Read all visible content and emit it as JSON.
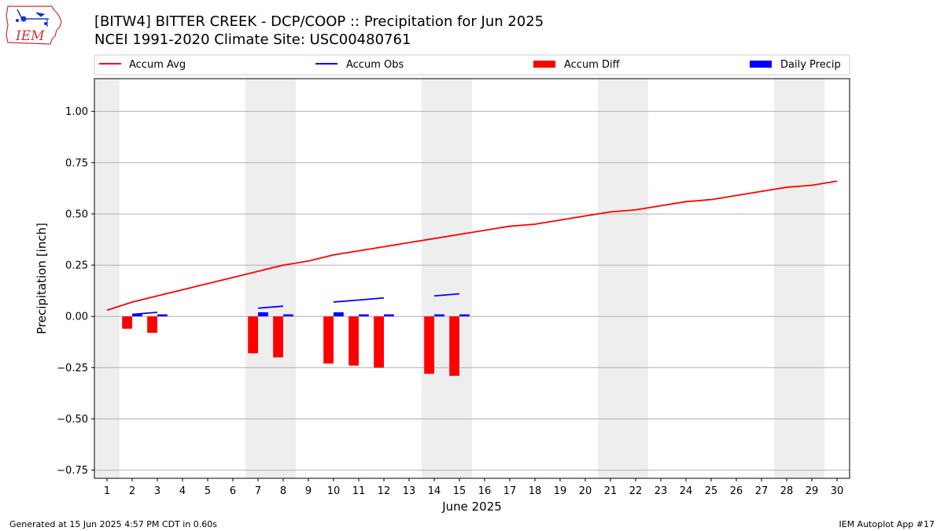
{
  "title": "[BITW4] BITTER CREEK - DCP/COOP :: Precipitation for Jun 2025",
  "subtitle": "NCEI 1991-2020 Climate Site: USC00480761",
  "logo_text": "IEM",
  "footer": {
    "generated": "Generated at 15 Jun 2025 4:57 PM CDT in 0.60s",
    "app": "IEM Autoplot App #17"
  },
  "colors": {
    "accum_avg": "#ff0000",
    "accum_obs": "#0000ff",
    "accum_diff": "#ff0000",
    "daily_precip": "#0000ff",
    "weekend_band": "#eeeeee",
    "grid": "#b0b0b0"
  },
  "chart_data": {
    "type": "bar",
    "xlabel": "June 2025",
    "ylabel": "Precipitation [inch]",
    "ylim": [
      -0.79,
      1.16
    ],
    "xlim": [
      0.5,
      30.5
    ],
    "grid": "horizontal",
    "legend_position": "top",
    "x": [
      1,
      2,
      3,
      4,
      5,
      6,
      7,
      8,
      9,
      10,
      11,
      12,
      13,
      14,
      15,
      16,
      17,
      18,
      19,
      20,
      21,
      22,
      23,
      24,
      25,
      26,
      27,
      28,
      29,
      30
    ],
    "y_ticks": [
      -0.75,
      -0.5,
      -0.25,
      0.0,
      0.25,
      0.5,
      0.75,
      1.0
    ],
    "y_tick_labels": [
      "−0.75",
      "−0.50",
      "−0.25",
      "0.00",
      "0.25",
      "0.50",
      "0.75",
      "1.00"
    ],
    "weekend_days": [
      1,
      7,
      8,
      14,
      15,
      21,
      22,
      28,
      29
    ],
    "series": [
      {
        "name": "Accum Avg",
        "kind": "line",
        "x": [
          1,
          2,
          3,
          4,
          5,
          6,
          7,
          8,
          9,
          10,
          11,
          12,
          13,
          14,
          15,
          16,
          17,
          18,
          19,
          20,
          21,
          22,
          23,
          24,
          25,
          26,
          27,
          28,
          29,
          30
        ],
        "values": [
          0.03,
          0.07,
          0.1,
          0.13,
          0.16,
          0.19,
          0.22,
          0.25,
          0.27,
          0.3,
          0.32,
          0.34,
          0.36,
          0.38,
          0.4,
          0.42,
          0.44,
          0.45,
          0.47,
          0.49,
          0.51,
          0.52,
          0.54,
          0.56,
          0.57,
          0.59,
          0.61,
          0.63,
          0.64,
          0.66
        ]
      },
      {
        "name": "Accum Obs",
        "kind": "line-segments",
        "segments": [
          {
            "x": [
              2,
              3
            ],
            "values": [
              0.01,
              0.02
            ]
          },
          {
            "x": [
              7,
              8
            ],
            "values": [
              0.04,
              0.05
            ]
          },
          {
            "x": [
              10,
              11,
              12
            ],
            "values": [
              0.07,
              0.08,
              0.09
            ]
          },
          {
            "x": [
              14,
              15
            ],
            "values": [
              0.1,
              0.11
            ]
          }
        ]
      },
      {
        "name": "Accum Diff",
        "kind": "bar",
        "x": [
          2,
          3,
          7,
          8,
          10,
          11,
          12,
          14,
          15
        ],
        "values": [
          -0.06,
          -0.08,
          -0.18,
          -0.2,
          -0.23,
          -0.24,
          -0.25,
          -0.28,
          -0.29
        ]
      },
      {
        "name": "Daily Precip",
        "kind": "bar",
        "x": [
          2,
          3,
          7,
          8,
          10,
          11,
          12,
          14,
          15
        ],
        "values": [
          0.01,
          0.01,
          0.02,
          0.01,
          0.02,
          0.01,
          0.01,
          0.01,
          0.01
        ]
      }
    ]
  }
}
